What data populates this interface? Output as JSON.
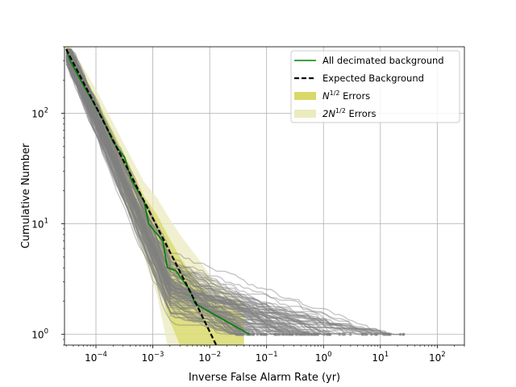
{
  "chart_data": {
    "type": "line",
    "xscale": "log",
    "yscale": "log",
    "xlabel": "Inverse False Alarm Rate (yr)",
    "ylabel": "Cumulative Number",
    "xlim": [
      2.8e-05,
      300
    ],
    "ylim": [
      0.8,
      400
    ],
    "grid": true,
    "legend_position": "top-right",
    "x_ticks": [
      {
        "value": 0.0001,
        "base": "10",
        "exp": "−4"
      },
      {
        "value": 0.001,
        "base": "10",
        "exp": "−3"
      },
      {
        "value": 0.01,
        "base": "10",
        "exp": "−2"
      },
      {
        "value": 0.1,
        "base": "10",
        "exp": "−1"
      },
      {
        "value": 1,
        "base": "10",
        "exp": "0"
      },
      {
        "value": 10,
        "base": "10",
        "exp": "1"
      },
      {
        "value": 100,
        "base": "10",
        "exp": "2"
      }
    ],
    "y_ticks": [
      {
        "value": 1,
        "base": "10",
        "exp": "0"
      },
      {
        "value": 10,
        "base": "10",
        "exp": "1"
      },
      {
        "value": 100,
        "base": "10",
        "exp": "2"
      }
    ],
    "colors": {
      "background_traces": "#808080",
      "decimated": "#008000",
      "expected": "#000000",
      "err1": "#d9d96a",
      "err2": "#ebebc0",
      "grid": "#b0b0b0"
    },
    "legend": [
      {
        "key": "decimated",
        "label": "All decimated background",
        "style": "line"
      },
      {
        "key": "expected",
        "label": "Expected Background",
        "style": "dashed"
      },
      {
        "key": "err1",
        "label_main": "N",
        "label_sup": "1/2",
        "label_rest": " Errors",
        "style": "patch"
      },
      {
        "key": "err2",
        "label_main": "2N",
        "label_sup": "1/2",
        "label_rest": " Errors",
        "style": "patch"
      }
    ],
    "expected_background": {
      "x": [
        3e-05,
        0.0001,
        0.001,
        0.005,
        0.013
      ],
      "y": [
        380,
        115,
        11.2,
        2.2,
        0.8
      ]
    },
    "decimated_background": {
      "x": [
        3e-05,
        3.5e-05,
        6e-05,
        0.00013,
        0.0002,
        0.00032,
        0.00042,
        0.0007,
        0.00085,
        0.0012,
        0.0015,
        0.0018,
        0.0025,
        0.0035,
        0.0045,
        0.0055,
        0.05
      ],
      "y": [
        380,
        300,
        180,
        90,
        55,
        40,
        25,
        16,
        10,
        8,
        7,
        4,
        3.8,
        3,
        2.5,
        1.9,
        1.0
      ]
    },
    "error_bands": {
      "x": [
        3e-05,
        0.0001,
        0.0003,
        0.0007,
        0.0012,
        0.0018,
        0.003,
        0.006,
        0.012,
        0.04
      ],
      "n_half": {
        "lo": [
          320,
          90,
          22,
          7,
          3.5,
          1.5,
          0.8,
          0.8,
          0.8,
          0.8
        ],
        "hi": [
          440,
          140,
          45,
          18,
          12,
          8,
          5,
          3,
          2,
          1.5
        ]
      },
      "two_n_half": {
        "lo": [
          290,
          80,
          18,
          5,
          2.2,
          0.8,
          0.8,
          0.8,
          0.8,
          0.8
        ],
        "hi": [
          480,
          165,
          55,
          24,
          17,
          12,
          8,
          5,
          3,
          2
        ]
      }
    },
    "background_trace_count": 110,
    "background_trace_endpoint_range": [
      0.03,
      30
    ]
  }
}
